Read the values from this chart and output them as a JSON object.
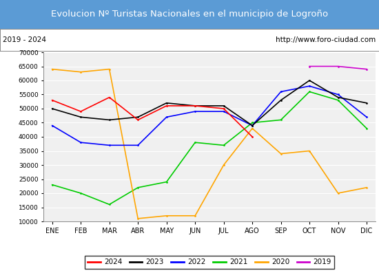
{
  "title": "Evolucion Nº Turistas Nacionales en el municipio de Logroño",
  "subtitle_left": "2019 - 2024",
  "subtitle_right": "http://www.foro-ciudad.com",
  "title_bg_color": "#5b9bd5",
  "title_text_color": "white",
  "months": [
    "ENE",
    "FEB",
    "MAR",
    "ABR",
    "MAY",
    "JUN",
    "JUL",
    "AGO",
    "SEP",
    "OCT",
    "NOV",
    "DIC"
  ],
  "ylim": [
    10000,
    70000
  ],
  "yticks": [
    10000,
    15000,
    20000,
    25000,
    30000,
    35000,
    40000,
    45000,
    50000,
    55000,
    60000,
    65000,
    70000
  ],
  "series": {
    "2024": {
      "color": "#ff0000",
      "values": [
        53000,
        49000,
        54000,
        46000,
        51000,
        51000,
        50000,
        40000,
        null,
        null,
        null,
        null
      ]
    },
    "2023": {
      "color": "#000000",
      "values": [
        50000,
        47000,
        46000,
        47000,
        52000,
        51000,
        51000,
        44000,
        53000,
        60000,
        54000,
        52000
      ]
    },
    "2022": {
      "color": "#0000ff",
      "values": [
        44000,
        38000,
        37000,
        37000,
        47000,
        49000,
        49000,
        44000,
        56000,
        58000,
        55000,
        47000
      ]
    },
    "2021": {
      "color": "#00cc00",
      "values": [
        23000,
        20000,
        16000,
        22000,
        24000,
        38000,
        37000,
        45000,
        46000,
        56000,
        53000,
        43000
      ]
    },
    "2020": {
      "color": "#ffa500",
      "values": [
        64000,
        63000,
        64000,
        11000,
        12000,
        12000,
        30000,
        43000,
        34000,
        35000,
        20000,
        22000
      ]
    },
    "2019": {
      "color": "#cc00cc",
      "values": [
        null,
        null,
        null,
        null,
        null,
        null,
        null,
        null,
        null,
        65000,
        65000,
        64000
      ]
    }
  }
}
